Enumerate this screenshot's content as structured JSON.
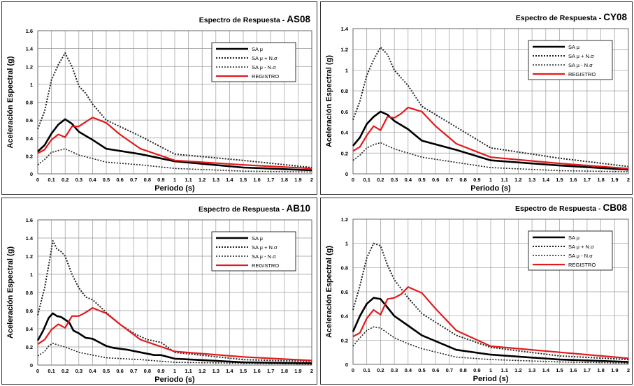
{
  "colors": {
    "mean": "#000000",
    "plus": "#222222",
    "minus": "#222222",
    "registro": "#e31a1c",
    "grid": "#9a9a9a"
  },
  "chart_data": [
    {
      "type": "line",
      "title": "Espectro de Respuesta -",
      "code": "AS08",
      "xlabel": "Periodo (s)",
      "ylabel": "Aceleración Espectral  (g)",
      "xlim": [
        0,
        2
      ],
      "ylim": [
        0,
        1.6
      ],
      "yticks": [
        "0",
        "0.2",
        "0.4",
        "0.6",
        "0.8",
        "1",
        "1.2",
        "1.4",
        "1.6"
      ],
      "xticks": [
        "0",
        "0.1",
        "0.2",
        "0.3",
        "0.4",
        "0.5",
        "0.6",
        "0.7",
        "0.8",
        "0.9",
        "1",
        "1.1",
        "1.2",
        "1.3",
        "1.4",
        "1.5",
        "1.6",
        "1.7",
        "1.8",
        "1.9",
        "2"
      ],
      "legend": [
        "SA μ",
        "SA μ + N.σ",
        "SA μ - N.σ",
        "REGISTRO"
      ],
      "legend_position": "top-right",
      "grid": true,
      "series": [
        {
          "name": "SA μ",
          "style": "mean",
          "x": [
            0,
            0.05,
            0.1,
            0.15,
            0.2,
            0.25,
            0.3,
            0.4,
            0.5,
            0.75,
            1.0,
            1.5,
            2.0
          ],
          "y": [
            0.25,
            0.32,
            0.45,
            0.55,
            0.61,
            0.56,
            0.47,
            0.38,
            0.28,
            0.22,
            0.14,
            0.07,
            0.04
          ]
        },
        {
          "name": "SA μ + N.σ",
          "style": "plus",
          "x": [
            0,
            0.05,
            0.1,
            0.15,
            0.2,
            0.25,
            0.3,
            0.35,
            0.4,
            0.5,
            0.75,
            1.0,
            1.5,
            2.0
          ],
          "y": [
            0.5,
            0.7,
            1.05,
            1.22,
            1.35,
            1.2,
            0.98,
            0.9,
            0.78,
            0.6,
            0.42,
            0.22,
            0.15,
            0.07
          ]
        },
        {
          "name": "SA μ - N.σ",
          "style": "minus",
          "x": [
            0,
            0.05,
            0.1,
            0.15,
            0.2,
            0.3,
            0.4,
            0.5,
            0.75,
            1.0,
            1.5,
            2.0
          ],
          "y": [
            0.1,
            0.16,
            0.24,
            0.26,
            0.28,
            0.21,
            0.17,
            0.13,
            0.1,
            0.06,
            0.03,
            0.02
          ]
        },
        {
          "name": "REGISTRO",
          "style": "registro",
          "x": [
            0,
            0.05,
            0.1,
            0.15,
            0.2,
            0.25,
            0.3,
            0.35,
            0.4,
            0.5,
            0.6,
            0.75,
            1.0,
            1.5,
            2.0
          ],
          "y": [
            0.23,
            0.27,
            0.38,
            0.44,
            0.41,
            0.53,
            0.53,
            0.58,
            0.63,
            0.57,
            0.44,
            0.28,
            0.15,
            0.1,
            0.06
          ]
        }
      ]
    },
    {
      "type": "line",
      "title": "Espectro de Respuesta -",
      "code": "CY08",
      "xlabel": "Periodo (s)",
      "ylabel": "Aceleración Espectral  (g)",
      "xlim": [
        0,
        2
      ],
      "ylim": [
        0,
        1.4
      ],
      "yticks": [
        "0",
        "0.2",
        "0.4",
        "0.6",
        "0.8",
        "1",
        "1.2",
        "1.4"
      ],
      "xticks": [
        "0",
        "0.1",
        "0.2",
        "0.3",
        "0.4",
        "0.5",
        "0.6",
        "0.7",
        "0.8",
        "0.9",
        "1",
        "1.1",
        "1.2",
        "1.3",
        "1.4",
        "1.5",
        "1.6",
        "1.7",
        "1.8",
        "1.9",
        "2"
      ],
      "legend": [
        "SA μ",
        "SA μ + N.σ",
        "SA μ - N.σ",
        "REGISTRO"
      ],
      "legend_position": "top-right",
      "grid": true,
      "series": [
        {
          "name": "SA μ",
          "style": "mean",
          "x": [
            0,
            0.05,
            0.1,
            0.15,
            0.2,
            0.25,
            0.3,
            0.4,
            0.5,
            0.75,
            1.0,
            1.5,
            2.0
          ],
          "y": [
            0.27,
            0.35,
            0.48,
            0.55,
            0.6,
            0.57,
            0.51,
            0.43,
            0.32,
            0.23,
            0.13,
            0.08,
            0.04
          ]
        },
        {
          "name": "SA μ + N.σ",
          "style": "plus",
          "x": [
            0,
            0.05,
            0.1,
            0.15,
            0.2,
            0.25,
            0.3,
            0.4,
            0.5,
            0.75,
            1.0,
            1.5,
            2.0
          ],
          "y": [
            0.52,
            0.7,
            0.95,
            1.1,
            1.22,
            1.15,
            1.0,
            0.85,
            0.65,
            0.45,
            0.25,
            0.15,
            0.07
          ]
        },
        {
          "name": "SA μ - N.σ",
          "style": "minus",
          "x": [
            0,
            0.05,
            0.1,
            0.15,
            0.2,
            0.3,
            0.4,
            0.5,
            0.75,
            1.0,
            1.5,
            2.0
          ],
          "y": [
            0.13,
            0.18,
            0.25,
            0.28,
            0.3,
            0.24,
            0.2,
            0.16,
            0.11,
            0.06,
            0.03,
            0.02
          ]
        },
        {
          "name": "REGISTRO",
          "style": "registro",
          "x": [
            0,
            0.05,
            0.1,
            0.15,
            0.2,
            0.25,
            0.3,
            0.35,
            0.4,
            0.5,
            0.6,
            0.75,
            1.0,
            1.5,
            2.0
          ],
          "y": [
            0.22,
            0.26,
            0.37,
            0.46,
            0.42,
            0.55,
            0.54,
            0.58,
            0.64,
            0.6,
            0.46,
            0.29,
            0.16,
            0.1,
            0.05
          ]
        }
      ]
    },
    {
      "type": "line",
      "title": "Espectro de Respuesta -",
      "code": "AB10",
      "xlabel": "Periodo (s)",
      "ylabel": "Aceleración Espectral  (g)",
      "xlim": [
        0,
        2
      ],
      "ylim": [
        0,
        1.6
      ],
      "yticks": [
        "0",
        "0.2",
        "0.4",
        "0.6",
        "0.8",
        "1",
        "1.2",
        "1.4",
        "1.6"
      ],
      "xticks": [
        "0",
        "0.1",
        "0.2",
        "0.3",
        "0.4",
        "0.5",
        "0.6",
        "0.7",
        "0.8",
        "0.9",
        "1",
        "1.1",
        "1.2",
        "1.3",
        "1.4",
        "1.5",
        "1.6",
        "1.7",
        "1.8",
        "1.9",
        "2"
      ],
      "legend": [
        "SA μ",
        "SA μ + N.σ",
        "SA μ - N.σ",
        "REGISTRO"
      ],
      "legend_position": "top-right",
      "grid": true,
      "series": [
        {
          "name": "SA μ",
          "style": "mean",
          "x": [
            0,
            0.04,
            0.08,
            0.11,
            0.14,
            0.17,
            0.2,
            0.23,
            0.26,
            0.3,
            0.35,
            0.4,
            0.45,
            0.5,
            0.55,
            0.65,
            0.75,
            0.85,
            0.9,
            1.0,
            1.5,
            2.0
          ],
          "y": [
            0.27,
            0.38,
            0.52,
            0.57,
            0.54,
            0.53,
            0.5,
            0.47,
            0.38,
            0.35,
            0.3,
            0.29,
            0.25,
            0.21,
            0.19,
            0.17,
            0.14,
            0.11,
            0.11,
            0.07,
            0.03,
            0.02
          ]
        },
        {
          "name": "SA μ + N.σ",
          "style": "plus",
          "x": [
            0,
            0.05,
            0.08,
            0.11,
            0.14,
            0.17,
            0.2,
            0.25,
            0.3,
            0.35,
            0.4,
            0.5,
            0.6,
            0.7,
            0.8,
            0.9,
            1.0,
            1.5,
            2.0
          ],
          "y": [
            0.55,
            0.85,
            1.1,
            1.37,
            1.28,
            1.25,
            1.2,
            1.0,
            0.85,
            0.75,
            0.72,
            0.58,
            0.45,
            0.35,
            0.28,
            0.25,
            0.14,
            0.06,
            0.04
          ]
        },
        {
          "name": "SA μ - N.σ",
          "style": "minus",
          "x": [
            0,
            0.05,
            0.08,
            0.11,
            0.15,
            0.2,
            0.3,
            0.4,
            0.5,
            0.75,
            1.0,
            1.5,
            2.0
          ],
          "y": [
            0.1,
            0.15,
            0.21,
            0.24,
            0.22,
            0.2,
            0.14,
            0.11,
            0.08,
            0.06,
            0.03,
            0.02,
            0.01
          ]
        },
        {
          "name": "REGISTRO",
          "style": "registro",
          "x": [
            0,
            0.05,
            0.1,
            0.15,
            0.2,
            0.25,
            0.3,
            0.35,
            0.4,
            0.5,
            0.6,
            0.75,
            1.0,
            1.5,
            2.0
          ],
          "y": [
            0.23,
            0.28,
            0.39,
            0.45,
            0.41,
            0.54,
            0.54,
            0.58,
            0.63,
            0.57,
            0.45,
            0.28,
            0.15,
            0.09,
            0.05
          ]
        }
      ]
    },
    {
      "type": "line",
      "title": "Espectro de Respuesta -",
      "code": "CB08",
      "xlabel": "Period (s)",
      "ylabel": "Aceleración Espectral  (g)",
      "xlim": [
        0,
        2
      ],
      "ylim": [
        0,
        1.2
      ],
      "yticks": [
        "0",
        "0.2",
        "0.4",
        "0.6",
        "0.8",
        "1",
        "1.2"
      ],
      "xticks": [
        "0",
        "0.1",
        "0.2",
        "0.3",
        "0.4",
        "0.5",
        "0.6",
        "0.7",
        "0.8",
        "0.9",
        "1",
        "1.1",
        "1.2",
        "1.3",
        "1.4",
        "1.5",
        "1.6",
        "1.7",
        "1.8",
        "1.9",
        "2"
      ],
      "legend": [
        "SA μ",
        "SA μ + N.σ",
        "SA μ - N.σ",
        "REGISTRO"
      ],
      "legend_position": "top-right",
      "grid": true,
      "series": [
        {
          "name": "SA μ",
          "style": "mean",
          "x": [
            0,
            0.05,
            0.1,
            0.15,
            0.2,
            0.25,
            0.3,
            0.4,
            0.5,
            0.75,
            1.0,
            1.5,
            2.0
          ],
          "y": [
            0.27,
            0.4,
            0.5,
            0.55,
            0.54,
            0.47,
            0.4,
            0.32,
            0.24,
            0.12,
            0.08,
            0.04,
            0.02
          ]
        },
        {
          "name": "SA μ + N.σ",
          "style": "plus",
          "x": [
            0,
            0.05,
            0.1,
            0.15,
            0.2,
            0.25,
            0.3,
            0.4,
            0.5,
            0.75,
            1.0,
            1.5,
            2.0
          ],
          "y": [
            0.45,
            0.65,
            0.88,
            1.0,
            0.98,
            0.82,
            0.7,
            0.55,
            0.42,
            0.24,
            0.14,
            0.07,
            0.04
          ]
        },
        {
          "name": "SA μ - N.σ",
          "style": "minus",
          "x": [
            0,
            0.05,
            0.1,
            0.15,
            0.2,
            0.3,
            0.4,
            0.5,
            0.75,
            1.0,
            1.5,
            2.0
          ],
          "y": [
            0.15,
            0.22,
            0.28,
            0.31,
            0.3,
            0.22,
            0.17,
            0.13,
            0.06,
            0.04,
            0.02,
            0.01
          ]
        },
        {
          "name": "REGISTRO",
          "style": "registro",
          "x": [
            0,
            0.05,
            0.1,
            0.15,
            0.2,
            0.25,
            0.3,
            0.35,
            0.4,
            0.5,
            0.6,
            0.75,
            1.0,
            1.5,
            2.0
          ],
          "y": [
            0.23,
            0.26,
            0.38,
            0.45,
            0.41,
            0.54,
            0.55,
            0.58,
            0.64,
            0.59,
            0.46,
            0.28,
            0.15,
            0.1,
            0.05
          ]
        }
      ]
    }
  ]
}
